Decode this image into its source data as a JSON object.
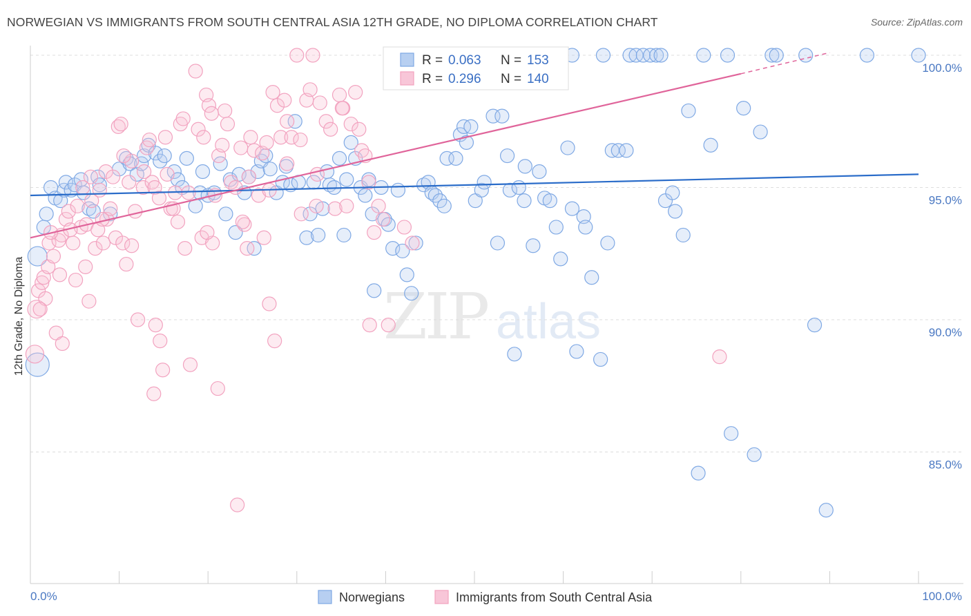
{
  "title": "NORWEGIAN VS IMMIGRANTS FROM SOUTH CENTRAL ASIA 12TH GRADE, NO DIPLOMA CORRELATION CHART",
  "source": "Source: ZipAtlas.com",
  "chart_data": {
    "type": "scatter",
    "ylabel": "12th Grade, No Diploma",
    "xlabel": "",
    "x_tick_labels": [
      "0.0%",
      "100.0%"
    ],
    "y_tick_labels": [
      "100.0%",
      "95.0%",
      "90.0%",
      "85.0%"
    ],
    "y_ticks": [
      100,
      95,
      90,
      85
    ],
    "xlim": [
      0,
      100
    ],
    "ylim": [
      80.5,
      100.9
    ],
    "grid": "horizontal dashed",
    "legend_placement": "top-center",
    "watermark": "ZIPatlas",
    "series": [
      {
        "name": "Norwegians",
        "color": "#7ea8e4",
        "line_color": "#2a6cc9",
        "R": "0.063",
        "N": "153",
        "trend": {
          "x": [
            0,
            100
          ],
          "y": [
            94.7,
            95.5
          ]
        },
        "points": [
          [
            0.8,
            88.3
          ],
          [
            0.8,
            92.4
          ],
          [
            1.5,
            93.5
          ],
          [
            1.8,
            94.0
          ],
          [
            2.3,
            95.0
          ],
          [
            2.8,
            94.6
          ],
          [
            3.4,
            94.5
          ],
          [
            3.8,
            94.9
          ],
          [
            4.0,
            95.2
          ],
          [
            4.6,
            94.9
          ],
          [
            5.0,
            95.1
          ],
          [
            5.7,
            95.3
          ],
          [
            6.0,
            94.8
          ],
          [
            6.6,
            94.2
          ],
          [
            7.1,
            94.1
          ],
          [
            7.6,
            95.4
          ],
          [
            7.8,
            95.1
          ],
          [
            9.0,
            94.0
          ],
          [
            10.0,
            95.7
          ],
          [
            10.8,
            96.1
          ],
          [
            11.2,
            95.9
          ],
          [
            12.0,
            95.5
          ],
          [
            12.5,
            95.9
          ],
          [
            12.8,
            96.2
          ],
          [
            13.3,
            96.6
          ],
          [
            14.1,
            96.3
          ],
          [
            14.6,
            96.0
          ],
          [
            15.1,
            96.2
          ],
          [
            16.2,
            95.6
          ],
          [
            16.6,
            95.3
          ],
          [
            17.1,
            95.0
          ],
          [
            17.6,
            96.1
          ],
          [
            18.6,
            94.3
          ],
          [
            19.1,
            94.8
          ],
          [
            19.4,
            95.6
          ],
          [
            20.0,
            94.7
          ],
          [
            20.7,
            94.8
          ],
          [
            21.4,
            95.9
          ],
          [
            22.0,
            94.0
          ],
          [
            22.5,
            95.3
          ],
          [
            23.1,
            93.3
          ],
          [
            23.5,
            95.5
          ],
          [
            24.1,
            94.8
          ],
          [
            24.6,
            95.4
          ],
          [
            25.2,
            92.7
          ],
          [
            25.6,
            95.6
          ],
          [
            26.0,
            96.0
          ],
          [
            26.5,
            96.2
          ],
          [
            27.0,
            95.7
          ],
          [
            27.7,
            94.8
          ],
          [
            28.4,
            95.2
          ],
          [
            28.8,
            95.8
          ],
          [
            29.3,
            95.1
          ],
          [
            29.8,
            97.5
          ],
          [
            30.2,
            95.2
          ],
          [
            31.1,
            93.1
          ],
          [
            31.5,
            94.0
          ],
          [
            31.9,
            95.2
          ],
          [
            32.4,
            93.2
          ],
          [
            32.9,
            94.2
          ],
          [
            33.4,
            95.6
          ],
          [
            33.7,
            95.1
          ],
          [
            34.2,
            95.0
          ],
          [
            34.8,
            96.1
          ],
          [
            35.3,
            93.2
          ],
          [
            35.6,
            95.3
          ],
          [
            36.1,
            96.7
          ],
          [
            36.6,
            96.1
          ],
          [
            37.2,
            95.0
          ],
          [
            37.7,
            94.7
          ],
          [
            38.1,
            95.3
          ],
          [
            38.5,
            94.0
          ],
          [
            38.7,
            91.1
          ],
          [
            39.5,
            95.0
          ],
          [
            39.9,
            93.8
          ],
          [
            40.3,
            93.6
          ],
          [
            40.8,
            92.7
          ],
          [
            41.4,
            94.9
          ],
          [
            41.9,
            92.6
          ],
          [
            42.4,
            91.7
          ],
          [
            42.9,
            91.0
          ],
          [
            43.4,
            92.9
          ],
          [
            44.3,
            95.1
          ],
          [
            44.8,
            95.2
          ],
          [
            45.2,
            94.8
          ],
          [
            45.6,
            94.7
          ],
          [
            46.1,
            94.5
          ],
          [
            46.6,
            94.3
          ],
          [
            46.9,
            96.1
          ],
          [
            47.9,
            96.1
          ],
          [
            48.4,
            97.0
          ],
          [
            48.8,
            97.3
          ],
          [
            49.1,
            96.7
          ],
          [
            49.6,
            97.3
          ],
          [
            50.1,
            94.5
          ],
          [
            50.8,
            94.9
          ],
          [
            51.1,
            95.2
          ],
          [
            52.1,
            97.7
          ],
          [
            52.6,
            92.9
          ],
          [
            53.1,
            97.7
          ],
          [
            53.7,
            96.2
          ],
          [
            54.0,
            94.9
          ],
          [
            54.5,
            88.7
          ],
          [
            55.0,
            95.0
          ],
          [
            55.6,
            94.5
          ],
          [
            55.7,
            95.8
          ],
          [
            56.6,
            92.8
          ],
          [
            57.3,
            95.6
          ],
          [
            57.9,
            94.6
          ],
          [
            58.5,
            94.5
          ],
          [
            59.2,
            93.5
          ],
          [
            59.7,
            92.3
          ],
          [
            60.5,
            96.5
          ],
          [
            61.0,
            94.2
          ],
          [
            61.5,
            88.8
          ],
          [
            62.3,
            93.9
          ],
          [
            62.5,
            93.5
          ],
          [
            63.2,
            91.6
          ],
          [
            64.2,
            88.5
          ],
          [
            65.0,
            92.9
          ],
          [
            65.5,
            96.4
          ],
          [
            66.2,
            96.4
          ],
          [
            67.1,
            96.4
          ],
          [
            67.5,
            100.0
          ],
          [
            68.2,
            100.0
          ],
          [
            69.0,
            100.0
          ],
          [
            69.8,
            100.0
          ],
          [
            70.5,
            100.0
          ],
          [
            71.0,
            100.0
          ],
          [
            71.5,
            94.5
          ],
          [
            72.3,
            94.8
          ],
          [
            72.6,
            94.1
          ],
          [
            73.5,
            93.2
          ],
          [
            74.1,
            97.9
          ],
          [
            75.2,
            84.2
          ],
          [
            75.8,
            100.0
          ],
          [
            76.6,
            96.6
          ],
          [
            78.5,
            100.0
          ],
          [
            78.9,
            85.7
          ],
          [
            80.3,
            98.0
          ],
          [
            81.5,
            84.9
          ],
          [
            82.2,
            97.1
          ],
          [
            83.5,
            100.0
          ],
          [
            84.0,
            100.0
          ],
          [
            87.3,
            100.0
          ],
          [
            88.3,
            89.8
          ],
          [
            89.6,
            82.8
          ],
          [
            94.2,
            100.0
          ],
          [
            100.0,
            100.0
          ],
          [
            54.3,
            100.0
          ],
          [
            56.8,
            100.0
          ],
          [
            61.0,
            100.0
          ],
          [
            64.5,
            100.0
          ]
        ]
      },
      {
        "name": "Immigrants from South Central Asia",
        "color": "#f2a2bf",
        "line_color": "#e0649a",
        "R": "0.296",
        "N": "140",
        "trend": {
          "x": [
            0,
            80
          ],
          "y": [
            93.1,
            99.3
          ]
        },
        "trend_ext": {
          "x": [
            80,
            90
          ],
          "y": [
            99.3,
            100.1
          ]
        },
        "points": [
          [
            0.5,
            88.7
          ],
          [
            0.7,
            90.4
          ],
          [
            0.9,
            91.1
          ],
          [
            1.3,
            91.4
          ],
          [
            1.5,
            91.6
          ],
          [
            2.0,
            92.0
          ],
          [
            2.1,
            92.9
          ],
          [
            2.6,
            92.4
          ],
          [
            2.9,
            89.5
          ],
          [
            3.2,
            93.0
          ],
          [
            3.5,
            93.2
          ],
          [
            3.6,
            89.1
          ],
          [
            4.0,
            93.8
          ],
          [
            4.3,
            94.1
          ],
          [
            4.8,
            92.9
          ],
          [
            5.1,
            91.5
          ],
          [
            5.3,
            94.3
          ],
          [
            5.7,
            93.5
          ],
          [
            6.2,
            92.0
          ],
          [
            6.3,
            93.6
          ],
          [
            6.6,
            90.7
          ],
          [
            6.9,
            94.5
          ],
          [
            7.3,
            92.7
          ],
          [
            7.6,
            93.4
          ],
          [
            7.8,
            94.9
          ],
          [
            8.2,
            92.9
          ],
          [
            8.5,
            95.6
          ],
          [
            8.6,
            93.8
          ],
          [
            9.0,
            94.2
          ],
          [
            9.3,
            95.4
          ],
          [
            9.6,
            93.1
          ],
          [
            9.9,
            97.3
          ],
          [
            10.2,
            97.4
          ],
          [
            10.4,
            92.9
          ],
          [
            10.8,
            92.1
          ],
          [
            11.1,
            95.2
          ],
          [
            11.4,
            96.0
          ],
          [
            11.8,
            94.1
          ],
          [
            12.1,
            90.0
          ],
          [
            12.7,
            95.0
          ],
          [
            13.1,
            96.5
          ],
          [
            13.4,
            96.8
          ],
          [
            13.7,
            95.2
          ],
          [
            14.0,
            95.0
          ],
          [
            14.1,
            89.8
          ],
          [
            14.5,
            94.6
          ],
          [
            14.6,
            89.2
          ],
          [
            14.9,
            88.1
          ],
          [
            15.2,
            96.9
          ],
          [
            15.4,
            95.5
          ],
          [
            15.8,
            94.2
          ],
          [
            16.1,
            94.2
          ],
          [
            16.6,
            93.7
          ],
          [
            16.9,
            97.4
          ],
          [
            17.2,
            97.6
          ],
          [
            17.4,
            92.7
          ],
          [
            17.8,
            94.8
          ],
          [
            18.0,
            88.3
          ],
          [
            18.6,
            99.4
          ],
          [
            18.9,
            97.2
          ],
          [
            19.3,
            93.1
          ],
          [
            19.5,
            96.9
          ],
          [
            19.8,
            98.5
          ],
          [
            20.1,
            98.1
          ],
          [
            20.4,
            97.8
          ],
          [
            20.8,
            94.7
          ],
          [
            21.2,
            96.2
          ],
          [
            21.6,
            96.6
          ],
          [
            21.9,
            97.9
          ],
          [
            21.1,
            87.4
          ],
          [
            22.2,
            97.4
          ],
          [
            22.6,
            95.2
          ],
          [
            23.1,
            95.0
          ],
          [
            23.3,
            83.0
          ],
          [
            23.7,
            96.5
          ],
          [
            24.1,
            93.6
          ],
          [
            24.6,
            95.4
          ],
          [
            24.8,
            96.9
          ],
          [
            25.2,
            96.4
          ],
          [
            25.7,
            94.7
          ],
          [
            26.1,
            96.3
          ],
          [
            26.6,
            96.7
          ],
          [
            26.9,
            94.9
          ],
          [
            27.3,
            98.6
          ],
          [
            27.5,
            89.2
          ],
          [
            27.8,
            98.1
          ],
          [
            28.2,
            96.9
          ],
          [
            28.6,
            98.3
          ],
          [
            28.9,
            97.5
          ],
          [
            29.4,
            96.9
          ],
          [
            30.0,
            100.0
          ],
          [
            30.4,
            96.8
          ],
          [
            31.1,
            98.3
          ],
          [
            31.5,
            98.7
          ],
          [
            31.8,
            100.0
          ],
          [
            32.2,
            94.3
          ],
          [
            32.6,
            98.2
          ],
          [
            33.3,
            97.5
          ],
          [
            33.8,
            97.2
          ],
          [
            34.3,
            94.2
          ],
          [
            34.8,
            98.5
          ],
          [
            35.2,
            98.0
          ],
          [
            35.6,
            94.3
          ],
          [
            36.1,
            97.4
          ],
          [
            36.6,
            98.6
          ],
          [
            37.0,
            97.2
          ],
          [
            37.3,
            96.4
          ],
          [
            37.7,
            96.2
          ],
          [
            38.1,
            95.2
          ],
          [
            38.2,
            89.8
          ],
          [
            38.7,
            93.3
          ],
          [
            39.2,
            94.3
          ],
          [
            39.7,
            93.8
          ],
          [
            40.3,
            89.8
          ],
          [
            42.1,
            93.5
          ],
          [
            43.0,
            92.9
          ],
          [
            26.3,
            93.1
          ],
          [
            23.9,
            93.7
          ],
          [
            20.5,
            92.9
          ],
          [
            19.9,
            93.3
          ],
          [
            16.3,
            94.8
          ],
          [
            12.8,
            95.6
          ],
          [
            11.4,
            92.8
          ],
          [
            10.5,
            96.2
          ],
          [
            8.1,
            93.8
          ],
          [
            6.8,
            95.4
          ],
          [
            5.9,
            95.0
          ],
          [
            4.5,
            93.4
          ],
          [
            3.3,
            91.7
          ],
          [
            2.3,
            93.3
          ],
          [
            1.7,
            90.8
          ],
          [
            1.1,
            90.4
          ],
          [
            24.4,
            92.7
          ],
          [
            26.9,
            90.6
          ],
          [
            28.9,
            95.9
          ],
          [
            30.5,
            94.0
          ],
          [
            32.3,
            95.5
          ],
          [
            35.1,
            98.0
          ],
          [
            77.6,
            88.6
          ],
          [
            13.9,
            87.2
          ]
        ]
      }
    ]
  }
}
